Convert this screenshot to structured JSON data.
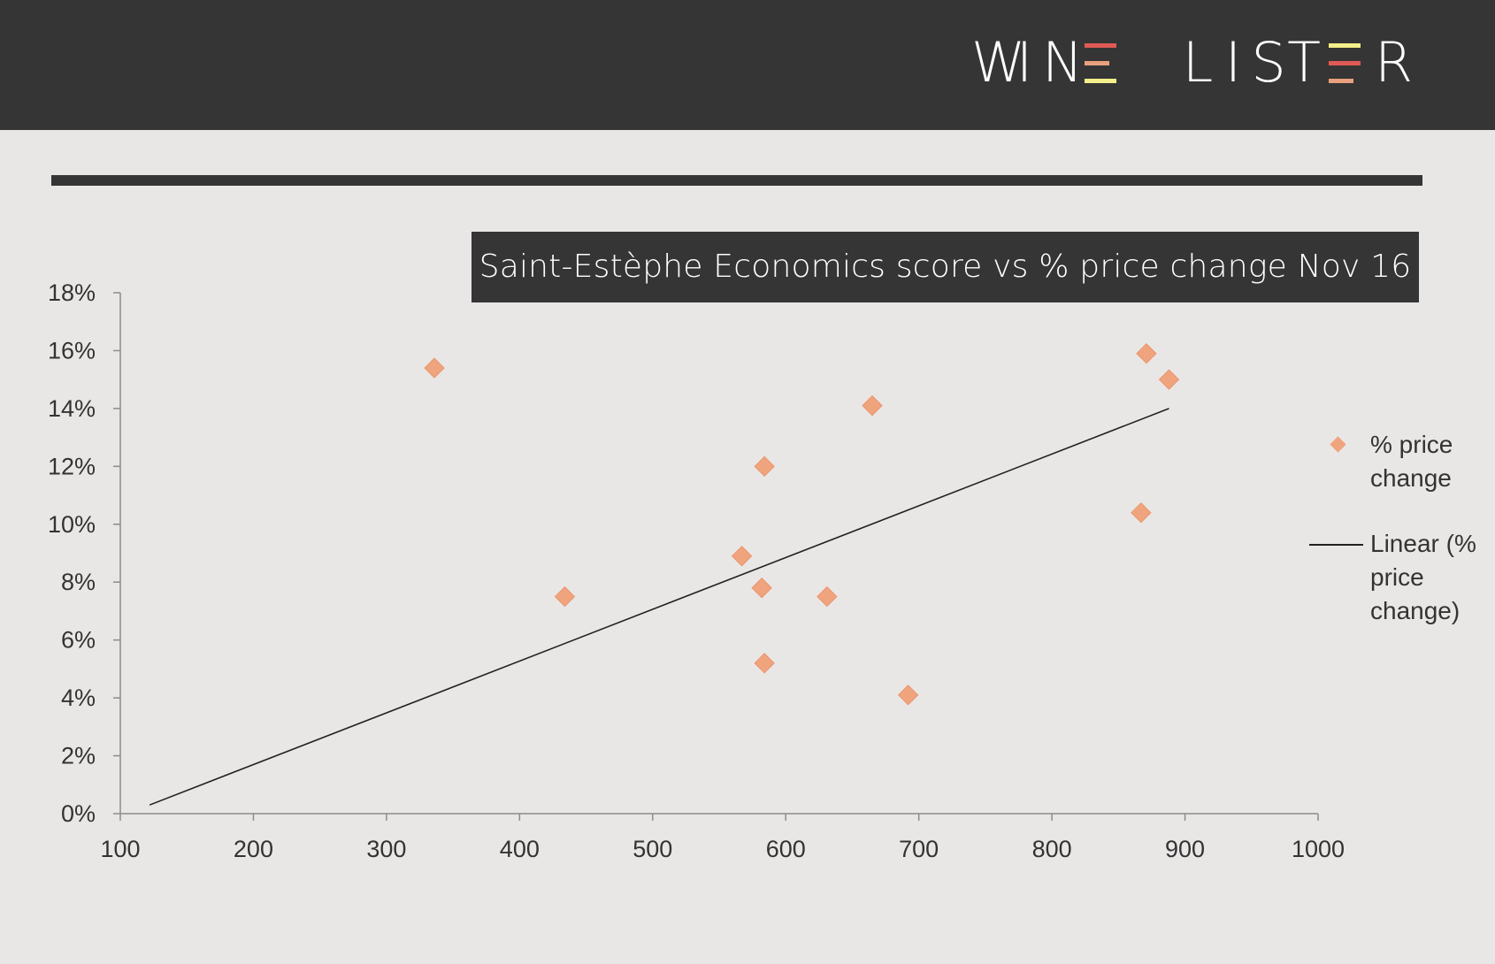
{
  "brand": {
    "name_part1": [
      "W",
      "I",
      "N"
    ],
    "name_part2": [
      "L",
      "I",
      "S",
      "T"
    ],
    "name_part3": [
      "R"
    ],
    "name": "WINE LISTER",
    "logo_colors": [
      "#e05a55",
      "#e8a07e",
      "#f4ef8a"
    ]
  },
  "colors": {
    "header_bg": "#353535",
    "page_bg": "#e9e7e6",
    "marker": "#f0a47e",
    "trendline": "#222222"
  },
  "chart_data": {
    "type": "scatter",
    "title": "Saint-Estèphe Economics score vs % price change Nov 16",
    "xlabel": "",
    "ylabel": "",
    "xlim": [
      100,
      1000
    ],
    "ylim": [
      0,
      18
    ],
    "x_ticks": [
      "100",
      "200",
      "300",
      "400",
      "500",
      "600",
      "700",
      "800",
      "900",
      "1000"
    ],
    "y_ticks": [
      "0%",
      "2%",
      "4%",
      "6%",
      "8%",
      "10%",
      "12%",
      "14%",
      "16%",
      "18%"
    ],
    "series": [
      {
        "name": "% price change",
        "marker": "diamond",
        "color": "#f0a47e",
        "x": [
          336,
          434,
          567,
          582,
          584,
          584,
          631,
          665,
          692,
          867,
          871,
          888
        ],
        "y": [
          15.4,
          7.5,
          8.9,
          7.8,
          12.0,
          5.2,
          7.5,
          14.1,
          4.1,
          10.4,
          15.9,
          15.0
        ]
      }
    ],
    "trendline": {
      "name": "Linear (% price change)",
      "type": "linear",
      "x": [
        122,
        888
      ],
      "y": [
        0.3,
        14.0
      ]
    },
    "legend": {
      "position": "right",
      "entries": [
        "% price change",
        "Linear (% price change)"
      ]
    },
    "grid": false
  }
}
